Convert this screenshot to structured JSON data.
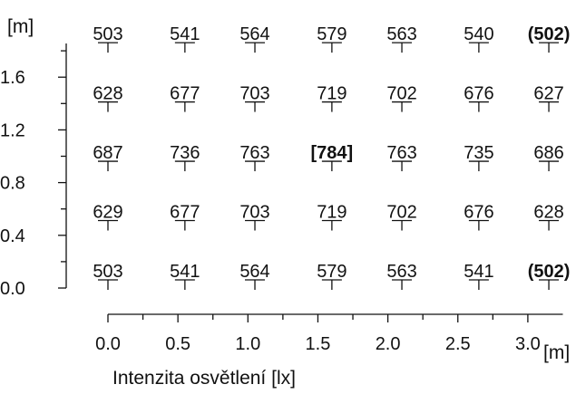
{
  "chart_data": {
    "type": "table",
    "title": "",
    "xlabel": "Intenzita osvětlení [lx]",
    "x_unit": "[m]",
    "y_unit": "[m]",
    "x_ticks": [
      "0.0",
      "0.5",
      "1.0",
      "1.5",
      "2.0",
      "2.5",
      "3.0"
    ],
    "y_ticks": [
      "0.0",
      "0.4",
      "0.8",
      "1.2",
      "1.6"
    ],
    "xlim": [
      0.0,
      3.3
    ],
    "ylim": [
      0.0,
      1.85
    ],
    "grid": false,
    "x_positions": [
      0.0,
      0.55,
      1.05,
      1.6,
      2.1,
      2.65,
      3.15
    ],
    "y_positions": [
      0.0,
      0.45,
      0.9,
      1.35,
      1.8
    ],
    "rows": [
      [
        "503",
        "541",
        "564",
        "579",
        "563",
        "540",
        "(502)"
      ],
      [
        "628",
        "677",
        "703",
        "719",
        "702",
        "676",
        "627"
      ],
      [
        "687",
        "736",
        "763",
        "[784]",
        "763",
        "735",
        "686"
      ],
      [
        "629",
        "677",
        "703",
        "719",
        "702",
        "676",
        "628"
      ],
      [
        "503",
        "541",
        "564",
        "579",
        "563",
        "541",
        "(502)"
      ]
    ]
  }
}
